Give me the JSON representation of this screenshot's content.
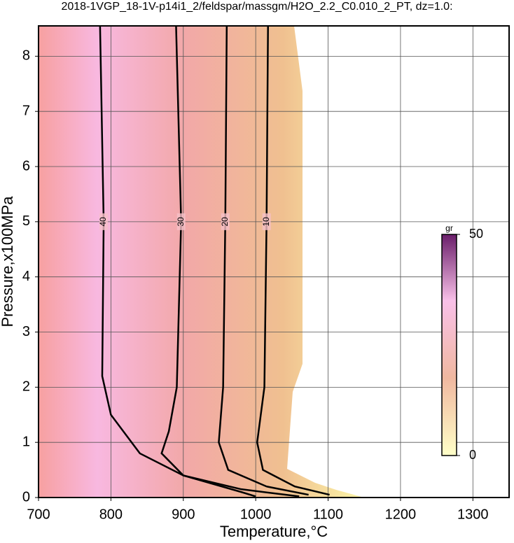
{
  "chart_data": {
    "type": "contour",
    "title": "2018-1VGP_18-1V-p14i1_2/feldspar/massgm/H2O_2.2_C0.010_2_PT, dz=1.0:",
    "x_label": "Temperature,°C",
    "y_label": "Pressure,x100MPa",
    "xlim": [
      700,
      1350
    ],
    "ylim": [
      0,
      8.55
    ],
    "xticks": [
      700,
      800,
      900,
      1000,
      1100,
      1200,
      1300
    ],
    "yticks": [
      0,
      1,
      2,
      3,
      4,
      5,
      6,
      7,
      8
    ],
    "grid": true,
    "series": [
      {
        "name": "10",
        "color": "#000000",
        "x": [
          1017,
          1015,
          1012,
          1002,
          1010,
          1054,
          1102
        ],
        "values": [
          8.55,
          5,
          2,
          1,
          0.5,
          0.2,
          0.05
        ]
      },
      {
        "name": "20",
        "color": "#000000",
        "x": [
          960,
          958,
          955,
          949,
          962,
          1015,
          1073
        ],
        "values": [
          8.55,
          5,
          2,
          1,
          0.5,
          0.2,
          0.05
        ]
      },
      {
        "name": "30",
        "color": "#000000",
        "x": [
          890,
          897,
          891,
          880,
          870,
          900,
          980,
          1060
        ],
        "values": [
          8.55,
          5,
          2,
          1.2,
          0.8,
          0.4,
          0.15,
          0.02
        ]
      },
      {
        "name": "40",
        "color": "#000000",
        "x": [
          785,
          790,
          788,
          800,
          840,
          900,
          980,
          1000
        ],
        "values": [
          8.55,
          5,
          2.2,
          1.5,
          0.8,
          0.4,
          0.1,
          0.02
        ]
      }
    ],
    "colorbar": {
      "label": "gr",
      "lim": [
        0,
        50
      ],
      "ticks": [
        0,
        50
      ]
    }
  }
}
